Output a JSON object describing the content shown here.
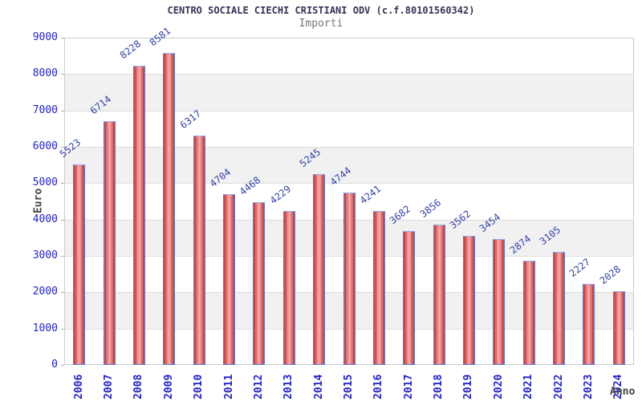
{
  "chart_data": {
    "type": "bar",
    "title": "CENTRO SOCIALE CIECHI CRISTIANI ODV (c.f.80101560342)",
    "subtitle": "Importi",
    "xlabel": "Anno",
    "ylabel": "Euro",
    "categories": [
      "2006",
      "2007",
      "2008",
      "2009",
      "2010",
      "2011",
      "2012",
      "2013",
      "2014",
      "2015",
      "2016",
      "2017",
      "2018",
      "2019",
      "2020",
      "2021",
      "2022",
      "2023",
      "2024"
    ],
    "values": [
      5523,
      6714,
      8228,
      8581,
      6317,
      4704,
      4468,
      4229,
      5245,
      4744,
      4241,
      3682,
      3856,
      3562,
      3454,
      2874,
      3105,
      2227,
      2028
    ],
    "ylim": [
      0,
      9000
    ],
    "ytick_step": 1000,
    "grid": true,
    "legend": "none",
    "colors": {
      "bar_fill_edge": "#b42222",
      "bar_fill_center": "#f5a2a2",
      "bar_border": "#4a7de0",
      "value_label": "#3344aa",
      "tick_label": "#2222cc",
      "title": "#333355",
      "subtitle": "#777777",
      "axis_title": "#444444",
      "band_gray": "#f1f1f1",
      "gridline": "#dddddd",
      "plot_border": "#cccccc"
    }
  }
}
